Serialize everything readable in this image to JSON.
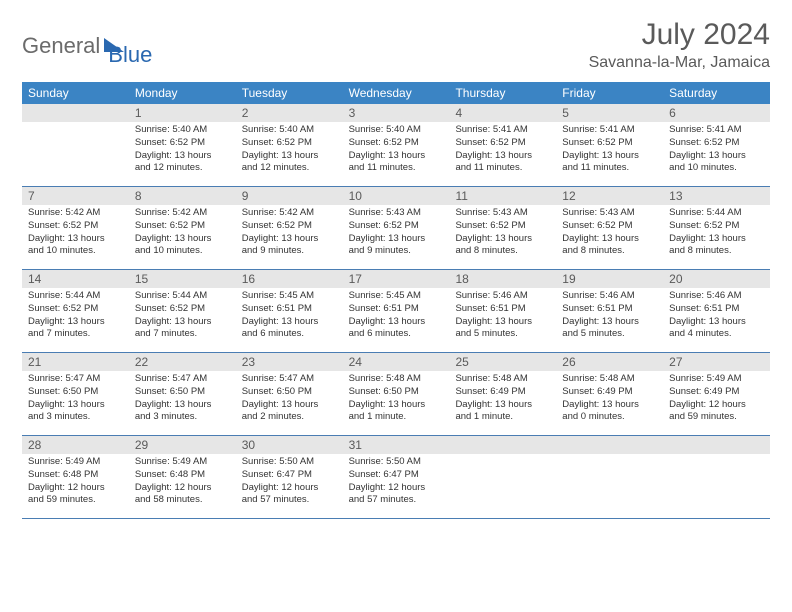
{
  "logo": {
    "part1": "General",
    "part2": "Blue"
  },
  "title": "July 2024",
  "location": "Savanna-la-Mar, Jamaica",
  "colors": {
    "header_bg": "#3b84c4",
    "header_text": "#ffffff",
    "daynum_bg": "#e6e6e6",
    "daynum_text": "#5a5a5a",
    "rule": "#4a7db3",
    "logo_gray": "#6b6b6b",
    "logo_blue": "#2a68b0",
    "body_text": "#333333",
    "title_text": "#5a5a5a",
    "background": "#ffffff"
  },
  "typography": {
    "title_fontsize": 30,
    "location_fontsize": 16,
    "weekday_fontsize": 12,
    "daynum_fontsize": 12,
    "body_fontsize": 9.5,
    "logo_fontsize": 22
  },
  "weekdays": [
    "Sunday",
    "Monday",
    "Tuesday",
    "Wednesday",
    "Thursday",
    "Friday",
    "Saturday"
  ],
  "weeks": [
    [
      {
        "n": "",
        "sunrise": "",
        "sunset": "",
        "daylight": ""
      },
      {
        "n": "1",
        "sunrise": "Sunrise: 5:40 AM",
        "sunset": "Sunset: 6:52 PM",
        "daylight": "Daylight: 13 hours and 12 minutes."
      },
      {
        "n": "2",
        "sunrise": "Sunrise: 5:40 AM",
        "sunset": "Sunset: 6:52 PM",
        "daylight": "Daylight: 13 hours and 12 minutes."
      },
      {
        "n": "3",
        "sunrise": "Sunrise: 5:40 AM",
        "sunset": "Sunset: 6:52 PM",
        "daylight": "Daylight: 13 hours and 11 minutes."
      },
      {
        "n": "4",
        "sunrise": "Sunrise: 5:41 AM",
        "sunset": "Sunset: 6:52 PM",
        "daylight": "Daylight: 13 hours and 11 minutes."
      },
      {
        "n": "5",
        "sunrise": "Sunrise: 5:41 AM",
        "sunset": "Sunset: 6:52 PM",
        "daylight": "Daylight: 13 hours and 11 minutes."
      },
      {
        "n": "6",
        "sunrise": "Sunrise: 5:41 AM",
        "sunset": "Sunset: 6:52 PM",
        "daylight": "Daylight: 13 hours and 10 minutes."
      }
    ],
    [
      {
        "n": "7",
        "sunrise": "Sunrise: 5:42 AM",
        "sunset": "Sunset: 6:52 PM",
        "daylight": "Daylight: 13 hours and 10 minutes."
      },
      {
        "n": "8",
        "sunrise": "Sunrise: 5:42 AM",
        "sunset": "Sunset: 6:52 PM",
        "daylight": "Daylight: 13 hours and 10 minutes."
      },
      {
        "n": "9",
        "sunrise": "Sunrise: 5:42 AM",
        "sunset": "Sunset: 6:52 PM",
        "daylight": "Daylight: 13 hours and 9 minutes."
      },
      {
        "n": "10",
        "sunrise": "Sunrise: 5:43 AM",
        "sunset": "Sunset: 6:52 PM",
        "daylight": "Daylight: 13 hours and 9 minutes."
      },
      {
        "n": "11",
        "sunrise": "Sunrise: 5:43 AM",
        "sunset": "Sunset: 6:52 PM",
        "daylight": "Daylight: 13 hours and 8 minutes."
      },
      {
        "n": "12",
        "sunrise": "Sunrise: 5:43 AM",
        "sunset": "Sunset: 6:52 PM",
        "daylight": "Daylight: 13 hours and 8 minutes."
      },
      {
        "n": "13",
        "sunrise": "Sunrise: 5:44 AM",
        "sunset": "Sunset: 6:52 PM",
        "daylight": "Daylight: 13 hours and 8 minutes."
      }
    ],
    [
      {
        "n": "14",
        "sunrise": "Sunrise: 5:44 AM",
        "sunset": "Sunset: 6:52 PM",
        "daylight": "Daylight: 13 hours and 7 minutes."
      },
      {
        "n": "15",
        "sunrise": "Sunrise: 5:44 AM",
        "sunset": "Sunset: 6:52 PM",
        "daylight": "Daylight: 13 hours and 7 minutes."
      },
      {
        "n": "16",
        "sunrise": "Sunrise: 5:45 AM",
        "sunset": "Sunset: 6:51 PM",
        "daylight": "Daylight: 13 hours and 6 minutes."
      },
      {
        "n": "17",
        "sunrise": "Sunrise: 5:45 AM",
        "sunset": "Sunset: 6:51 PM",
        "daylight": "Daylight: 13 hours and 6 minutes."
      },
      {
        "n": "18",
        "sunrise": "Sunrise: 5:46 AM",
        "sunset": "Sunset: 6:51 PM",
        "daylight": "Daylight: 13 hours and 5 minutes."
      },
      {
        "n": "19",
        "sunrise": "Sunrise: 5:46 AM",
        "sunset": "Sunset: 6:51 PM",
        "daylight": "Daylight: 13 hours and 5 minutes."
      },
      {
        "n": "20",
        "sunrise": "Sunrise: 5:46 AM",
        "sunset": "Sunset: 6:51 PM",
        "daylight": "Daylight: 13 hours and 4 minutes."
      }
    ],
    [
      {
        "n": "21",
        "sunrise": "Sunrise: 5:47 AM",
        "sunset": "Sunset: 6:50 PM",
        "daylight": "Daylight: 13 hours and 3 minutes."
      },
      {
        "n": "22",
        "sunrise": "Sunrise: 5:47 AM",
        "sunset": "Sunset: 6:50 PM",
        "daylight": "Daylight: 13 hours and 3 minutes."
      },
      {
        "n": "23",
        "sunrise": "Sunrise: 5:47 AM",
        "sunset": "Sunset: 6:50 PM",
        "daylight": "Daylight: 13 hours and 2 minutes."
      },
      {
        "n": "24",
        "sunrise": "Sunrise: 5:48 AM",
        "sunset": "Sunset: 6:50 PM",
        "daylight": "Daylight: 13 hours and 1 minute."
      },
      {
        "n": "25",
        "sunrise": "Sunrise: 5:48 AM",
        "sunset": "Sunset: 6:49 PM",
        "daylight": "Daylight: 13 hours and 1 minute."
      },
      {
        "n": "26",
        "sunrise": "Sunrise: 5:48 AM",
        "sunset": "Sunset: 6:49 PM",
        "daylight": "Daylight: 13 hours and 0 minutes."
      },
      {
        "n": "27",
        "sunrise": "Sunrise: 5:49 AM",
        "sunset": "Sunset: 6:49 PM",
        "daylight": "Daylight: 12 hours and 59 minutes."
      }
    ],
    [
      {
        "n": "28",
        "sunrise": "Sunrise: 5:49 AM",
        "sunset": "Sunset: 6:48 PM",
        "daylight": "Daylight: 12 hours and 59 minutes."
      },
      {
        "n": "29",
        "sunrise": "Sunrise: 5:49 AM",
        "sunset": "Sunset: 6:48 PM",
        "daylight": "Daylight: 12 hours and 58 minutes."
      },
      {
        "n": "30",
        "sunrise": "Sunrise: 5:50 AM",
        "sunset": "Sunset: 6:47 PM",
        "daylight": "Daylight: 12 hours and 57 minutes."
      },
      {
        "n": "31",
        "sunrise": "Sunrise: 5:50 AM",
        "sunset": "Sunset: 6:47 PM",
        "daylight": "Daylight: 12 hours and 57 minutes."
      },
      {
        "n": "",
        "sunrise": "",
        "sunset": "",
        "daylight": ""
      },
      {
        "n": "",
        "sunrise": "",
        "sunset": "",
        "daylight": ""
      },
      {
        "n": "",
        "sunrise": "",
        "sunset": "",
        "daylight": ""
      }
    ]
  ]
}
